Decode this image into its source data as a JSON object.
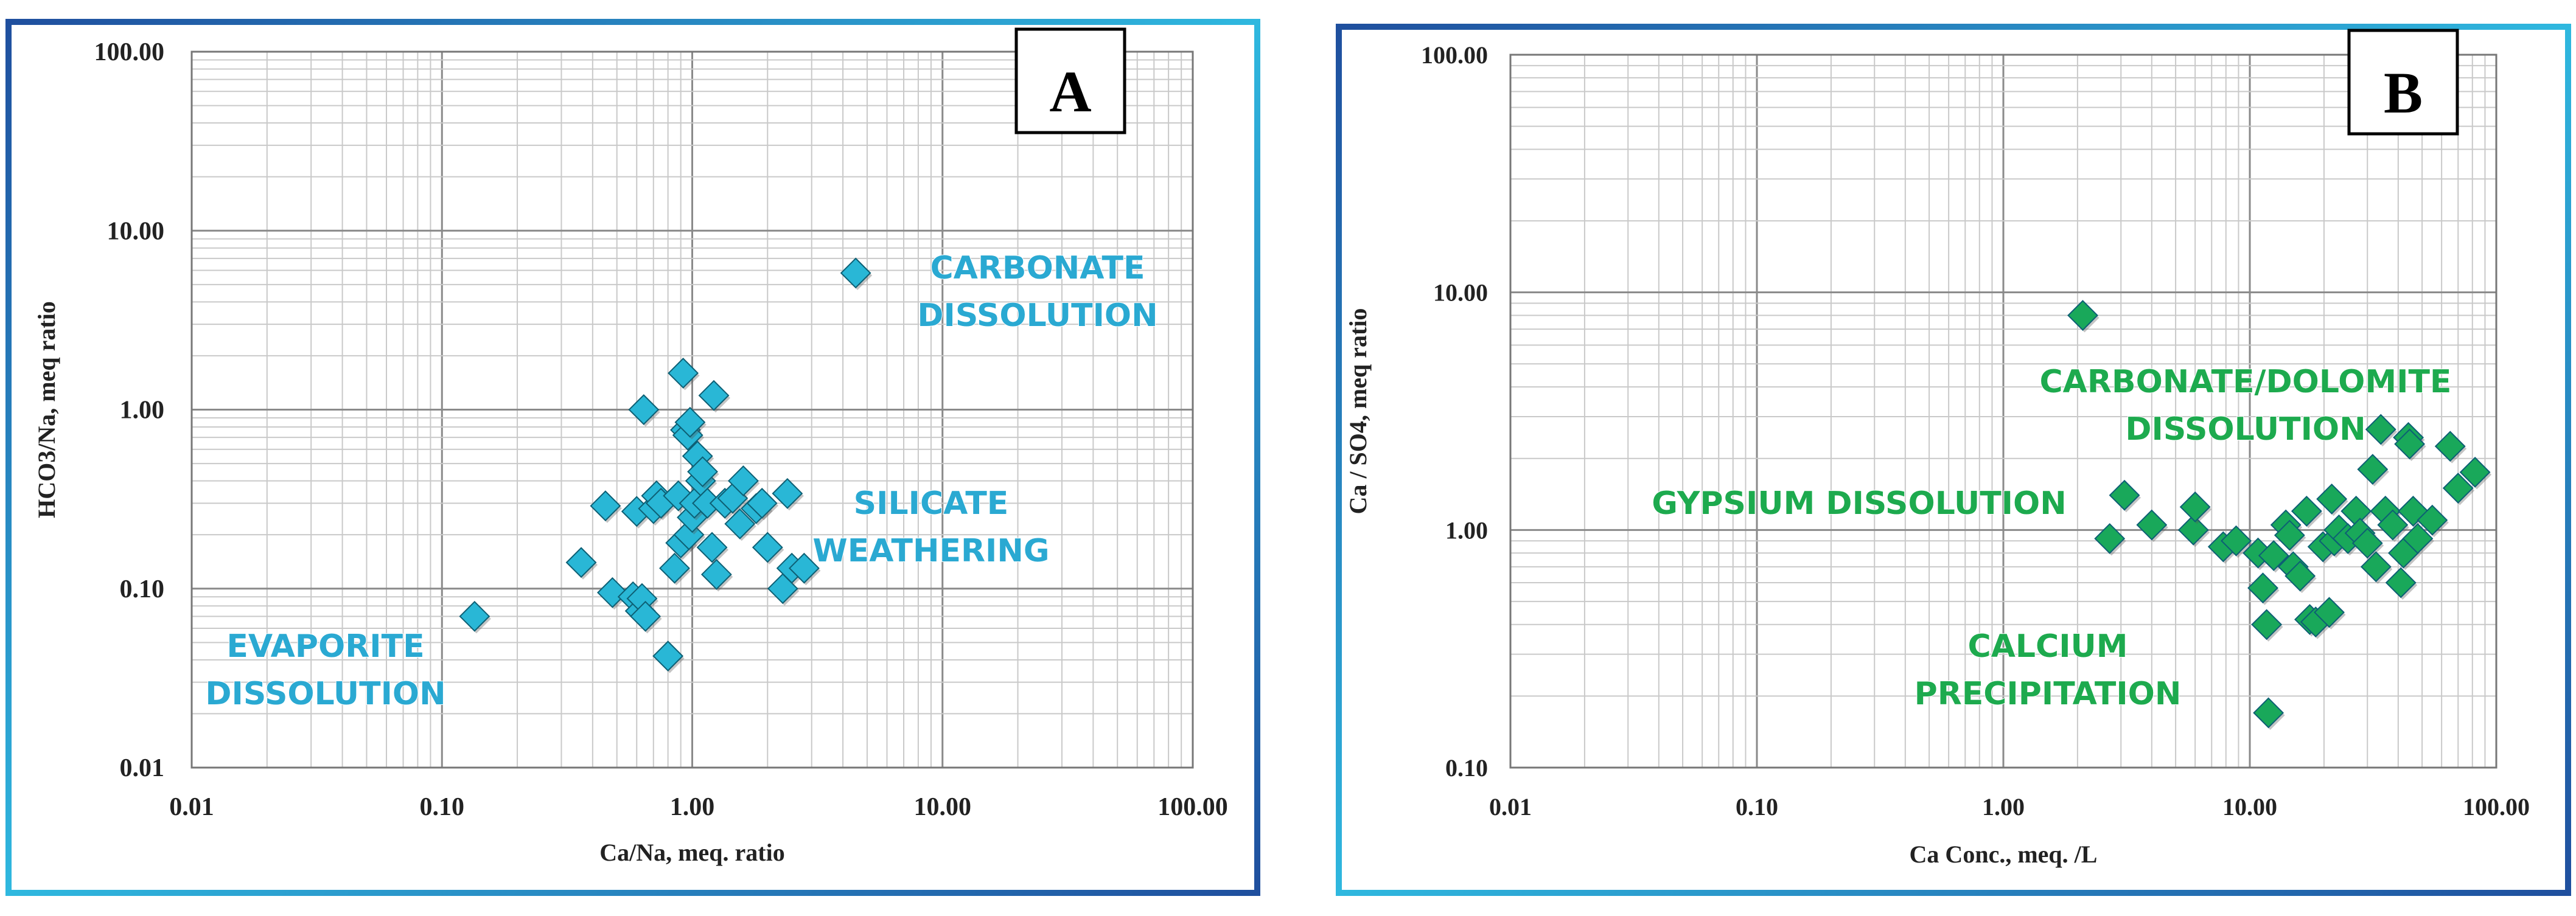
{
  "colors": {
    "frame_outer": "#1f5fa8",
    "frame_inner": "#35c3e0",
    "grid_major": "#8a8a8a",
    "grid_minor": "#c9c9c9",
    "marker_a": "#29b7d6",
    "marker_b": "#19a85a",
    "anno_a": "#2aa9d2",
    "anno_b": "#1daa4e"
  },
  "chart_data": [
    {
      "panel": "A",
      "type": "scatter",
      "xscale": "log",
      "yscale": "log",
      "xlim": [
        0.01,
        100
      ],
      "ylim": [
        0.01,
        100
      ],
      "grid": true,
      "xlabel": "Ca/Na, meq. ratio",
      "ylabel": "HCO3/Na, meq ratio",
      "xticks": [
        "0.01",
        "0.10",
        "1.00",
        "10.00",
        "100.00"
      ],
      "yticks": [
        "0.01",
        "0.10",
        "1.00",
        "10.00",
        "100.00"
      ],
      "annotations": [
        {
          "lines": [
            "CARBONATE",
            "DISSOLUTION"
          ]
        },
        {
          "lines": [
            "SILICATE",
            "WEATHERING"
          ]
        },
        {
          "lines": [
            "EVAPORITE",
            "DISSOLUTION"
          ]
        }
      ],
      "points": [
        [
          0.135,
          0.07
        ],
        [
          0.36,
          0.14
        ],
        [
          0.45,
          0.29
        ],
        [
          0.48,
          0.095
        ],
        [
          0.58,
          0.09
        ],
        [
          0.6,
          0.27
        ],
        [
          0.62,
          0.075
        ],
        [
          0.63,
          0.088
        ],
        [
          0.65,
          0.07
        ],
        [
          0.64,
          1.0
        ],
        [
          0.7,
          0.28
        ],
        [
          0.72,
          0.33
        ],
        [
          0.75,
          0.3
        ],
        [
          0.8,
          0.042
        ],
        [
          0.85,
          0.13
        ],
        [
          0.88,
          0.33
        ],
        [
          0.9,
          0.18
        ],
        [
          0.92,
          1.6
        ],
        [
          0.94,
          0.77
        ],
        [
          0.96,
          0.72
        ],
        [
          0.97,
          0.2
        ],
        [
          0.98,
          0.85
        ],
        [
          1.0,
          0.25
        ],
        [
          1.02,
          0.3
        ],
        [
          1.05,
          0.55
        ],
        [
          1.08,
          0.4
        ],
        [
          1.1,
          0.45
        ],
        [
          1.15,
          0.3
        ],
        [
          1.2,
          0.17
        ],
        [
          1.22,
          1.2
        ],
        [
          1.25,
          0.12
        ],
        [
          1.35,
          0.3
        ],
        [
          1.45,
          0.32
        ],
        [
          1.55,
          0.23
        ],
        [
          1.6,
          0.4
        ],
        [
          1.8,
          0.28
        ],
        [
          1.9,
          0.3
        ],
        [
          2.0,
          0.17
        ],
        [
          2.3,
          0.1
        ],
        [
          2.4,
          0.34
        ],
        [
          2.5,
          0.13
        ],
        [
          2.8,
          0.13
        ],
        [
          4.5,
          5.8
        ]
      ]
    },
    {
      "panel": "B",
      "type": "scatter",
      "xscale": "log",
      "yscale": "log",
      "xlim": [
        0.01,
        100
      ],
      "ylim": [
        0.1,
        100
      ],
      "grid": true,
      "xlabel": "Ca Conc., meq. /L",
      "ylabel": "Ca / SO4, meq ratio",
      "xticks": [
        "0.01",
        "0.10",
        "1.00",
        "10.00",
        "100.00"
      ],
      "yticks": [
        "0.10",
        "1.00",
        "10.00",
        "100.00"
      ],
      "annotations": [
        {
          "lines": [
            "CARBONATE/DOLOMITE",
            "DISSOLUTION"
          ]
        },
        {
          "lines": [
            "GYPSIUM DISSOLUTION"
          ]
        },
        {
          "lines": [
            "CALCIUM",
            "PRECIPITATION"
          ]
        }
      ],
      "points": [
        [
          2.1,
          8.0
        ],
        [
          2.7,
          0.92
        ],
        [
          3.1,
          1.4
        ],
        [
          4.0,
          1.05
        ],
        [
          5.9,
          1.0
        ],
        [
          6.0,
          1.25
        ],
        [
          7.8,
          0.85
        ],
        [
          8.8,
          0.9
        ],
        [
          10.8,
          0.8
        ],
        [
          11.3,
          0.57
        ],
        [
          11.7,
          0.4
        ],
        [
          11.9,
          0.17
        ],
        [
          12.5,
          0.78
        ],
        [
          14.0,
          1.05
        ],
        [
          14.5,
          0.95
        ],
        [
          15.0,
          0.7
        ],
        [
          16.0,
          0.64
        ],
        [
          17.0,
          1.2
        ],
        [
          17.5,
          0.42
        ],
        [
          18.5,
          0.41
        ],
        [
          19.8,
          0.85
        ],
        [
          21.0,
          0.45
        ],
        [
          21.5,
          1.35
        ],
        [
          22.0,
          0.9
        ],
        [
          23.0,
          1.0
        ],
        [
          25.0,
          0.92
        ],
        [
          27.0,
          1.2
        ],
        [
          28.0,
          0.97
        ],
        [
          30.0,
          0.88
        ],
        [
          31.5,
          1.8
        ],
        [
          32.5,
          0.7
        ],
        [
          34.0,
          2.65
        ],
        [
          35.5,
          1.2
        ],
        [
          38.0,
          1.05
        ],
        [
          41.0,
          0.6
        ],
        [
          42.0,
          0.8
        ],
        [
          44.0,
          2.45
        ],
        [
          44.5,
          2.3
        ],
        [
          46.0,
          1.2
        ],
        [
          48.0,
          0.92
        ],
        [
          55.0,
          1.1
        ],
        [
          65.0,
          2.25
        ],
        [
          70.0,
          1.5
        ],
        [
          82.0,
          1.75
        ]
      ]
    }
  ]
}
